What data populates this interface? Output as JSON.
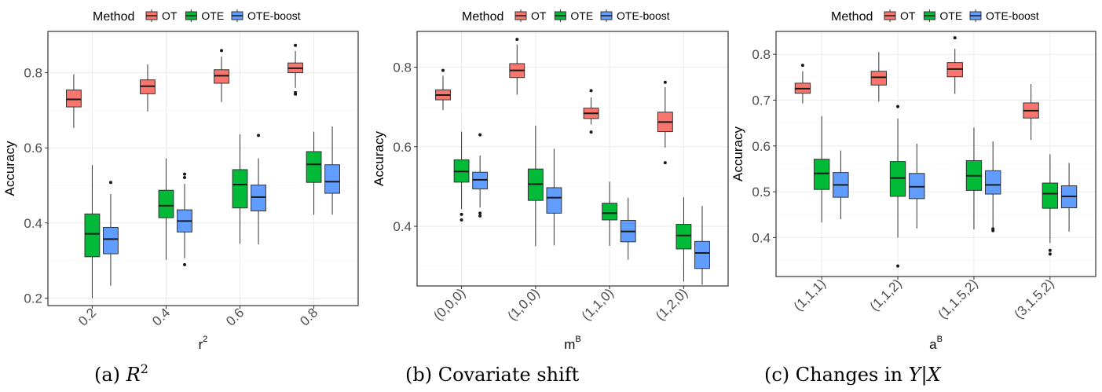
{
  "legend": {
    "title": "Method",
    "items": [
      {
        "name": "OT",
        "color": "#F8766D"
      },
      {
        "name": "OTE",
        "color": "#00BA38"
      },
      {
        "name": "OTE-boost",
        "color": "#619CFF"
      }
    ]
  },
  "chart_data": [
    {
      "type": "boxplot",
      "caption": {
        "prefix": "(a) ",
        "math": "R",
        "sup": "2"
      },
      "xlabel": "r",
      "xlabel_sup": "2",
      "ylabel": "Accuracy",
      "ylim": [
        0.18,
        0.91
      ],
      "yticks": [
        0.2,
        0.4,
        0.6,
        0.8
      ],
      "tick_labels": [
        "0.2",
        "0.4",
        "0.6",
        "0.8"
      ],
      "categories": [
        "0.2",
        "0.4",
        "0.6",
        "0.8"
      ],
      "grid": true,
      "legend_position": "top",
      "series": [
        {
          "name": "OT",
          "boxes": [
            {
              "wlo": 0.653,
              "q1": 0.709,
              "med": 0.729,
              "q3": 0.754,
              "whi": 0.796,
              "out": []
            },
            {
              "wlo": 0.697,
              "q1": 0.744,
              "med": 0.764,
              "q3": 0.781,
              "whi": 0.822,
              "out": []
            },
            {
              "wlo": 0.722,
              "q1": 0.772,
              "med": 0.792,
              "q3": 0.808,
              "whi": 0.843,
              "out": [
                0.859
              ]
            },
            {
              "wlo": 0.76,
              "q1": 0.8,
              "med": 0.812,
              "q3": 0.826,
              "whi": 0.858,
              "out": [
                0.873,
                0.747,
                0.743
              ]
            }
          ]
        },
        {
          "name": "OTE",
          "boxes": [
            {
              "wlo": 0.2,
              "q1": 0.31,
              "med": 0.371,
              "q3": 0.424,
              "whi": 0.554,
              "out": []
            },
            {
              "wlo": 0.302,
              "q1": 0.414,
              "med": 0.446,
              "q3": 0.487,
              "whi": 0.572,
              "out": []
            },
            {
              "wlo": 0.345,
              "q1": 0.44,
              "med": 0.502,
              "q3": 0.542,
              "whi": 0.636,
              "out": []
            },
            {
              "wlo": 0.422,
              "q1": 0.508,
              "med": 0.556,
              "q3": 0.59,
              "whi": 0.643,
              "out": []
            }
          ]
        },
        {
          "name": "OTE-boost",
          "boxes": [
            {
              "wlo": 0.233,
              "q1": 0.318,
              "med": 0.357,
              "q3": 0.388,
              "whi": 0.477,
              "out": [
                0.508
              ]
            },
            {
              "wlo": 0.306,
              "q1": 0.376,
              "med": 0.405,
              "q3": 0.435,
              "whi": 0.504,
              "out": [
                0.53,
                0.521,
                0.289
              ]
            },
            {
              "wlo": 0.343,
              "q1": 0.432,
              "med": 0.469,
              "q3": 0.501,
              "whi": 0.572,
              "out": [
                0.633
              ]
            },
            {
              "wlo": 0.422,
              "q1": 0.479,
              "med": 0.51,
              "q3": 0.555,
              "whi": 0.657,
              "out": []
            }
          ]
        }
      ]
    },
    {
      "type": "boxplot",
      "caption": {
        "prefix": "(b) Covariate shift"
      },
      "xlabel": "m",
      "xlabel_sup": "B",
      "ylabel": "Accuracy",
      "ylim": [
        0.25,
        0.89
      ],
      "yticks": [
        0.4,
        0.6,
        0.8
      ],
      "tick_labels": [
        "0.4",
        "0.6",
        "0.8"
      ],
      "categories": [
        "(0,0,0)",
        "(1,0,0)",
        "(1,1,0)",
        "(1,2,0)"
      ],
      "grid": true,
      "legend_position": "top",
      "series": [
        {
          "name": "OT",
          "boxes": [
            {
              "wlo": 0.692,
              "q1": 0.718,
              "med": 0.73,
              "q3": 0.743,
              "whi": 0.779,
              "out": [
                0.792
              ]
            },
            {
              "wlo": 0.731,
              "q1": 0.774,
              "med": 0.792,
              "q3": 0.809,
              "whi": 0.857,
              "out": [
                0.87
              ]
            },
            {
              "wlo": 0.656,
              "q1": 0.671,
              "med": 0.684,
              "q3": 0.697,
              "whi": 0.724,
              "out": [
                0.741,
                0.637
              ]
            },
            {
              "wlo": 0.598,
              "q1": 0.638,
              "med": 0.662,
              "q3": 0.687,
              "whi": 0.75,
              "out": [
                0.762,
                0.56
              ]
            }
          ]
        },
        {
          "name": "OTE",
          "boxes": [
            {
              "wlo": 0.443,
              "q1": 0.511,
              "med": 0.538,
              "q3": 0.567,
              "whi": 0.638,
              "out": [
                0.43,
                0.416
              ]
            },
            {
              "wlo": 0.35,
              "q1": 0.465,
              "med": 0.506,
              "q3": 0.544,
              "whi": 0.653,
              "out": []
            },
            {
              "wlo": 0.351,
              "q1": 0.416,
              "med": 0.433,
              "q3": 0.458,
              "whi": 0.512,
              "out": []
            },
            {
              "wlo": 0.261,
              "q1": 0.343,
              "med": 0.377,
              "q3": 0.405,
              "whi": 0.473,
              "out": []
            }
          ]
        },
        {
          "name": "OTE-boost",
          "boxes": [
            {
              "wlo": 0.447,
              "q1": 0.494,
              "med": 0.517,
              "q3": 0.536,
              "whi": 0.578,
              "out": [
                0.63,
                0.433,
                0.426
              ]
            },
            {
              "wlo": 0.352,
              "q1": 0.433,
              "med": 0.472,
              "q3": 0.497,
              "whi": 0.595,
              "out": []
            },
            {
              "wlo": 0.316,
              "q1": 0.361,
              "med": 0.387,
              "q3": 0.415,
              "whi": 0.472,
              "out": []
            },
            {
              "wlo": 0.253,
              "q1": 0.294,
              "med": 0.333,
              "q3": 0.362,
              "whi": 0.451,
              "out": []
            }
          ]
        }
      ]
    },
    {
      "type": "boxplot",
      "caption": {
        "prefix": "(c) Changes in ",
        "math": "Y|X"
      },
      "xlabel": "a",
      "xlabel_sup": "B",
      "ylabel": "Accuracy",
      "ylim": [
        0.315,
        0.85
      ],
      "yticks": [
        0.4,
        0.5,
        0.6,
        0.7,
        0.8
      ],
      "tick_labels": [
        "0.4",
        "0.5",
        "0.6",
        "0.7",
        "0.8"
      ],
      "categories": [
        "(1,1,1)",
        "(1,1,2)",
        "(1,1.5,2)",
        "(3,1.5,2)"
      ],
      "grid": true,
      "legend_position": "top",
      "series": [
        {
          "name": "OT",
          "boxes": [
            {
              "wlo": 0.693,
              "q1": 0.715,
              "med": 0.725,
              "q3": 0.737,
              "whi": 0.763,
              "out": [
                0.776
              ]
            },
            {
              "wlo": 0.697,
              "q1": 0.733,
              "med": 0.75,
              "q3": 0.763,
              "whi": 0.805,
              "out": []
            },
            {
              "wlo": 0.714,
              "q1": 0.751,
              "med": 0.768,
              "q3": 0.782,
              "whi": 0.812,
              "out": [
                0.836
              ]
            },
            {
              "wlo": 0.613,
              "q1": 0.661,
              "med": 0.677,
              "q3": 0.694,
              "whi": 0.735,
              "out": []
            }
          ]
        },
        {
          "name": "OTE",
          "boxes": [
            {
              "wlo": 0.433,
              "q1": 0.505,
              "med": 0.54,
              "q3": 0.571,
              "whi": 0.665,
              "out": []
            },
            {
              "wlo": 0.4,
              "q1": 0.49,
              "med": 0.53,
              "q3": 0.566,
              "whi": 0.66,
              "out": [
                0.686,
                0.338
              ]
            },
            {
              "wlo": 0.418,
              "q1": 0.503,
              "med": 0.535,
              "q3": 0.568,
              "whi": 0.64,
              "out": []
            },
            {
              "wlo": 0.388,
              "q1": 0.464,
              "med": 0.496,
              "q3": 0.519,
              "whi": 0.582,
              "out": [
                0.372,
                0.364
              ]
            }
          ]
        },
        {
          "name": "OTE-boost",
          "boxes": [
            {
              "wlo": 0.44,
              "q1": 0.488,
              "med": 0.515,
              "q3": 0.542,
              "whi": 0.59,
              "out": []
            },
            {
              "wlo": 0.42,
              "q1": 0.485,
              "med": 0.511,
              "q3": 0.54,
              "whi": 0.605,
              "out": []
            },
            {
              "wlo": 0.422,
              "q1": 0.495,
              "med": 0.515,
              "q3": 0.546,
              "whi": 0.61,
              "out": [
                0.419,
                0.415
              ]
            },
            {
              "wlo": 0.413,
              "q1": 0.465,
              "med": 0.49,
              "q3": 0.513,
              "whi": 0.563,
              "out": []
            }
          ]
        }
      ]
    }
  ]
}
